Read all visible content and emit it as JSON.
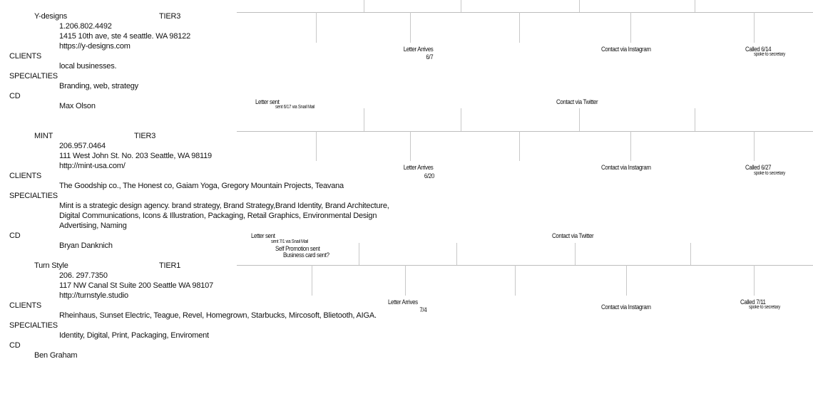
{
  "companies": [
    {
      "name": "Y-designs",
      "tier": "TIER3",
      "phone": "1.206.802.4492",
      "address": "1415 10th ave, ste 4 seattle. WA 98122",
      "website": "https://y-designs.com",
      "clients_label": "CLIENTS",
      "clients": "local businesses.",
      "specialties_label": "SPECIALTIES",
      "specialties": [
        "Branding, web, strategy"
      ],
      "cd_label": "CD",
      "cd": "Max Olson",
      "timeline": {
        "letter_sent": "Letter sent",
        "sent_detail": [
          "sent 6/17 via Snail Mail"
        ],
        "twitter": "Contact via Twitter",
        "letter_arrives": "Letter Arrives",
        "arrives_date": "6/7",
        "instagram": "Contact via Instagram",
        "called": "Called 6/14",
        "called_note": "spoke to secretary"
      }
    },
    {
      "name": "MINT",
      "tier": "TIER3",
      "phone": "206.957.0464",
      "address": "111 West John St. No. 203 Seattle, WA 98119",
      "website": "http://mint-usa.com/",
      "clients_label": "CLIENTS",
      "clients": "The  Goodship co.,  The Honest co,  Gaiam Yoga, Gregory Mountain Projects, Teavana",
      "specialties_label": "SPECIALTIES",
      "specialties": [
        "Mint is a strategic design agency. brand strategy, Brand Strategy,Brand Identity, Brand Architecture,",
        "Digital Communications, Icons & Illustration, Packaging, Retail Graphics, Environmental Design",
        "Advertising, Naming"
      ],
      "cd_label": "CD",
      "cd": "Bryan Danknich",
      "timeline": {
        "letter_sent": "Letter sent",
        "sent_detail": [
          "sent 7/1 via Snail Mail",
          "Self Promotion sent",
          "Business card sent?"
        ],
        "twitter": "Contact via Twitter",
        "letter_arrives": "Letter Arrives",
        "arrives_date": "6/20",
        "instagram": "Contact via Instagram",
        "called": "Called 6/27",
        "called_note": "spoke to secretary"
      }
    },
    {
      "name": "Turn Style",
      "tier": "TIER1",
      "phone": "206. 297.7350",
      "address": "117 NW Canal St Suite 200 Seattle WA 98107",
      "website": "http://turnstyle.studio",
      "clients_label": "CLIENTS",
      "clients": "Rheinhaus, Sunset Electric, Teague,  Revel, Homegrown, Starbucks, Mircosoft, Blietooth, AIGA.",
      "specialties_label": "SPECIALTIES",
      "specialties": [
        "Identity, Digital, Print, Packaging, Enviroment"
      ],
      "cd_label": "CD",
      "cd": "Ben Graham",
      "timeline": {
        "letter_arrives": "Letter Arrives",
        "arrives_date": "7/4",
        "instagram": "Contact via Instagram",
        "called": "Called 7/11",
        "called_note": "spoke to secretary"
      }
    }
  ]
}
